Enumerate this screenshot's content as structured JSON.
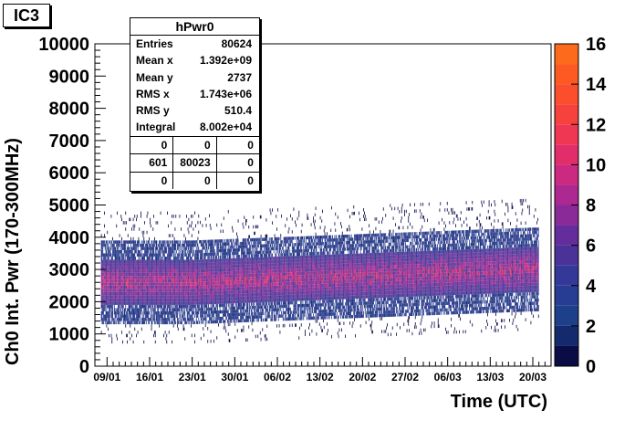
{
  "pad_label": "IC3",
  "stats": {
    "title": "hPwr0",
    "rows": [
      {
        "key": "Entries",
        "value": "80624"
      },
      {
        "key": "Mean x",
        "value": "1.392e+09"
      },
      {
        "key": "Mean y",
        "value": "2737"
      },
      {
        "key": "RMS x",
        "value": "1.743e+06"
      },
      {
        "key": "RMS y",
        "value": "510.4"
      },
      {
        "key": "Integral",
        "value": "8.002e+04"
      }
    ],
    "overflow": [
      [
        "0",
        "0",
        "0"
      ],
      [
        "601",
        "80023",
        "0"
      ],
      [
        "0",
        "0",
        "0"
      ]
    ]
  },
  "chart_data": {
    "type": "heatmap",
    "title": "",
    "xlabel": "Time (UTC)",
    "ylabel": "Ch0 Int. Pwr (170-300MHz)",
    "xlim": [
      "2014-01-07",
      "2014-03-23"
    ],
    "ylim": [
      0,
      10000
    ],
    "x_tick_labels": [
      "09/01",
      "16/01",
      "23/01",
      "30/01",
      "06/02",
      "13/02",
      "20/02",
      "27/02",
      "06/03",
      "13/03",
      "20/03"
    ],
    "y_tick_labels": [
      "0",
      "1000",
      "2000",
      "3000",
      "4000",
      "5000",
      "6000",
      "7000",
      "8000",
      "9000",
      "10000"
    ],
    "z_range": [
      0,
      16
    ],
    "z_tick_labels": [
      "0",
      "2",
      "4",
      "6",
      "8",
      "10",
      "12",
      "14",
      "16"
    ],
    "data_x_range": [
      "2014-01-08",
      "2014-03-21"
    ],
    "band": {
      "center_y_profile": [
        {
          "x": "2014-01-09",
          "y": 2600
        },
        {
          "x": "2014-01-23",
          "y": 2600
        },
        {
          "x": "2014-02-06",
          "y": 2700
        },
        {
          "x": "2014-02-20",
          "y": 2800
        },
        {
          "x": "2014-03-06",
          "y": 2900
        },
        {
          "x": "2014-03-20",
          "y": 3000
        }
      ],
      "core_half_width": 700,
      "outer_half_width": 1300,
      "max_count": 11
    },
    "palette": [
      "#0c0c4a",
      "#1a2d7a",
      "#24458f",
      "#3a3d95",
      "#55369a",
      "#7a2f9c",
      "#a52b93",
      "#cf2a7e",
      "#ea3060",
      "#f44430",
      "#f95224"
    ],
    "grid": false,
    "legend": "none"
  }
}
